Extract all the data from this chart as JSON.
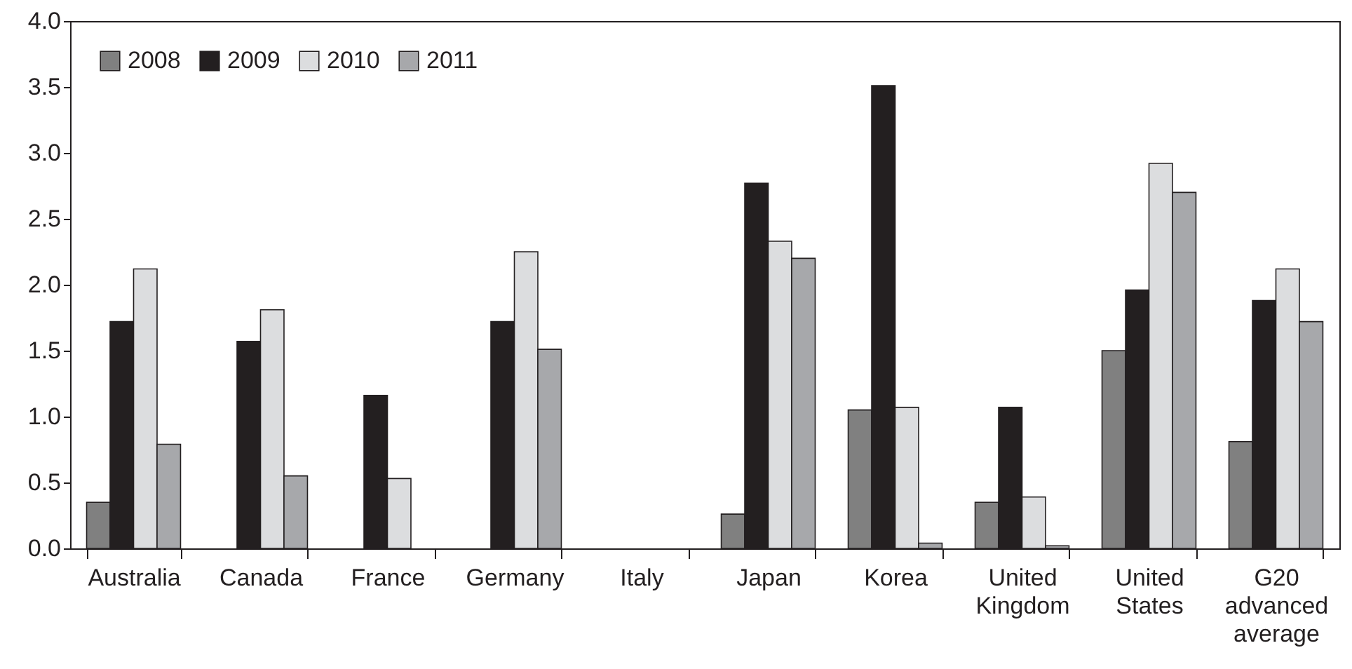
{
  "chart_data": {
    "type": "bar",
    "categories": [
      "Australia",
      "Canada",
      "France",
      "Germany",
      "Italy",
      "Japan",
      "Korea",
      "United Kingdom",
      "United States",
      "G20 advanced average"
    ],
    "series": [
      {
        "name": "2008",
        "color": "#808080",
        "values": [
          0.35,
          null,
          null,
          null,
          null,
          0.26,
          1.05,
          0.35,
          1.5,
          0.81
        ]
      },
      {
        "name": "2009",
        "color": "#231f20",
        "values": [
          1.72,
          1.57,
          1.16,
          1.72,
          null,
          2.77,
          3.51,
          1.07,
          1.96,
          1.88
        ]
      },
      {
        "name": "2010",
        "color": "#dcdddf",
        "values": [
          2.12,
          1.81,
          0.53,
          2.25,
          null,
          2.33,
          1.07,
          0.39,
          2.92,
          2.12
        ]
      },
      {
        "name": "2011",
        "color": "#a7a8ab",
        "values": [
          0.79,
          0.55,
          null,
          1.51,
          null,
          2.2,
          0.04,
          0.02,
          2.7,
          1.72
        ]
      }
    ],
    "ylim": [
      0,
      4
    ],
    "yticks": [
      {
        "value": 0,
        "label": "0.0"
      },
      {
        "value": 0.5,
        "label": "0.5"
      },
      {
        "value": 1,
        "label": "1.0"
      },
      {
        "value": 1.5,
        "label": "1.5"
      },
      {
        "value": 2,
        "label": "2.0"
      },
      {
        "value": 2.5,
        "label": "2.5"
      },
      {
        "value": 3,
        "label": "3.0"
      },
      {
        "value": 3.5,
        "label": "3.5"
      },
      {
        "value": 4,
        "label": "4.0"
      }
    ],
    "grid": false,
    "legend": "top left"
  }
}
